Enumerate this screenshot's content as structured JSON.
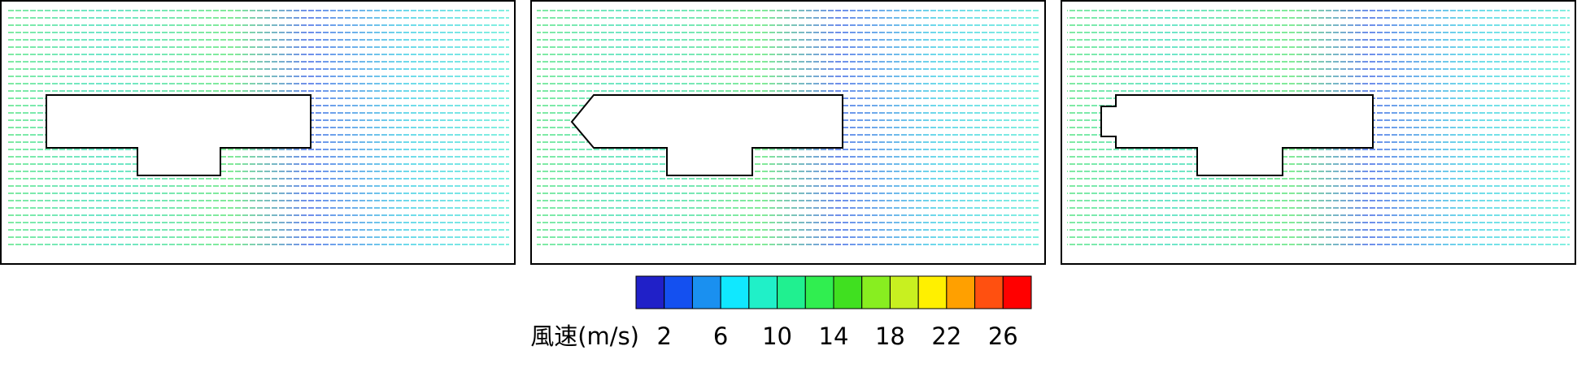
{
  "colorbar": {
    "label": "風速(m/s)",
    "range": [
      0,
      28
    ],
    "ticks": [
      2,
      6,
      10,
      14,
      18,
      22,
      26
    ],
    "colors": [
      "#2020c8",
      "#1450f0",
      "#1a90f0",
      "#10e8ff",
      "#20f0c8",
      "#20f090",
      "#30ee50",
      "#40e020",
      "#88ee20",
      "#c8f020",
      "#fff000",
      "#ffa000",
      "#ff5010",
      "#ff0000"
    ]
  }
}
